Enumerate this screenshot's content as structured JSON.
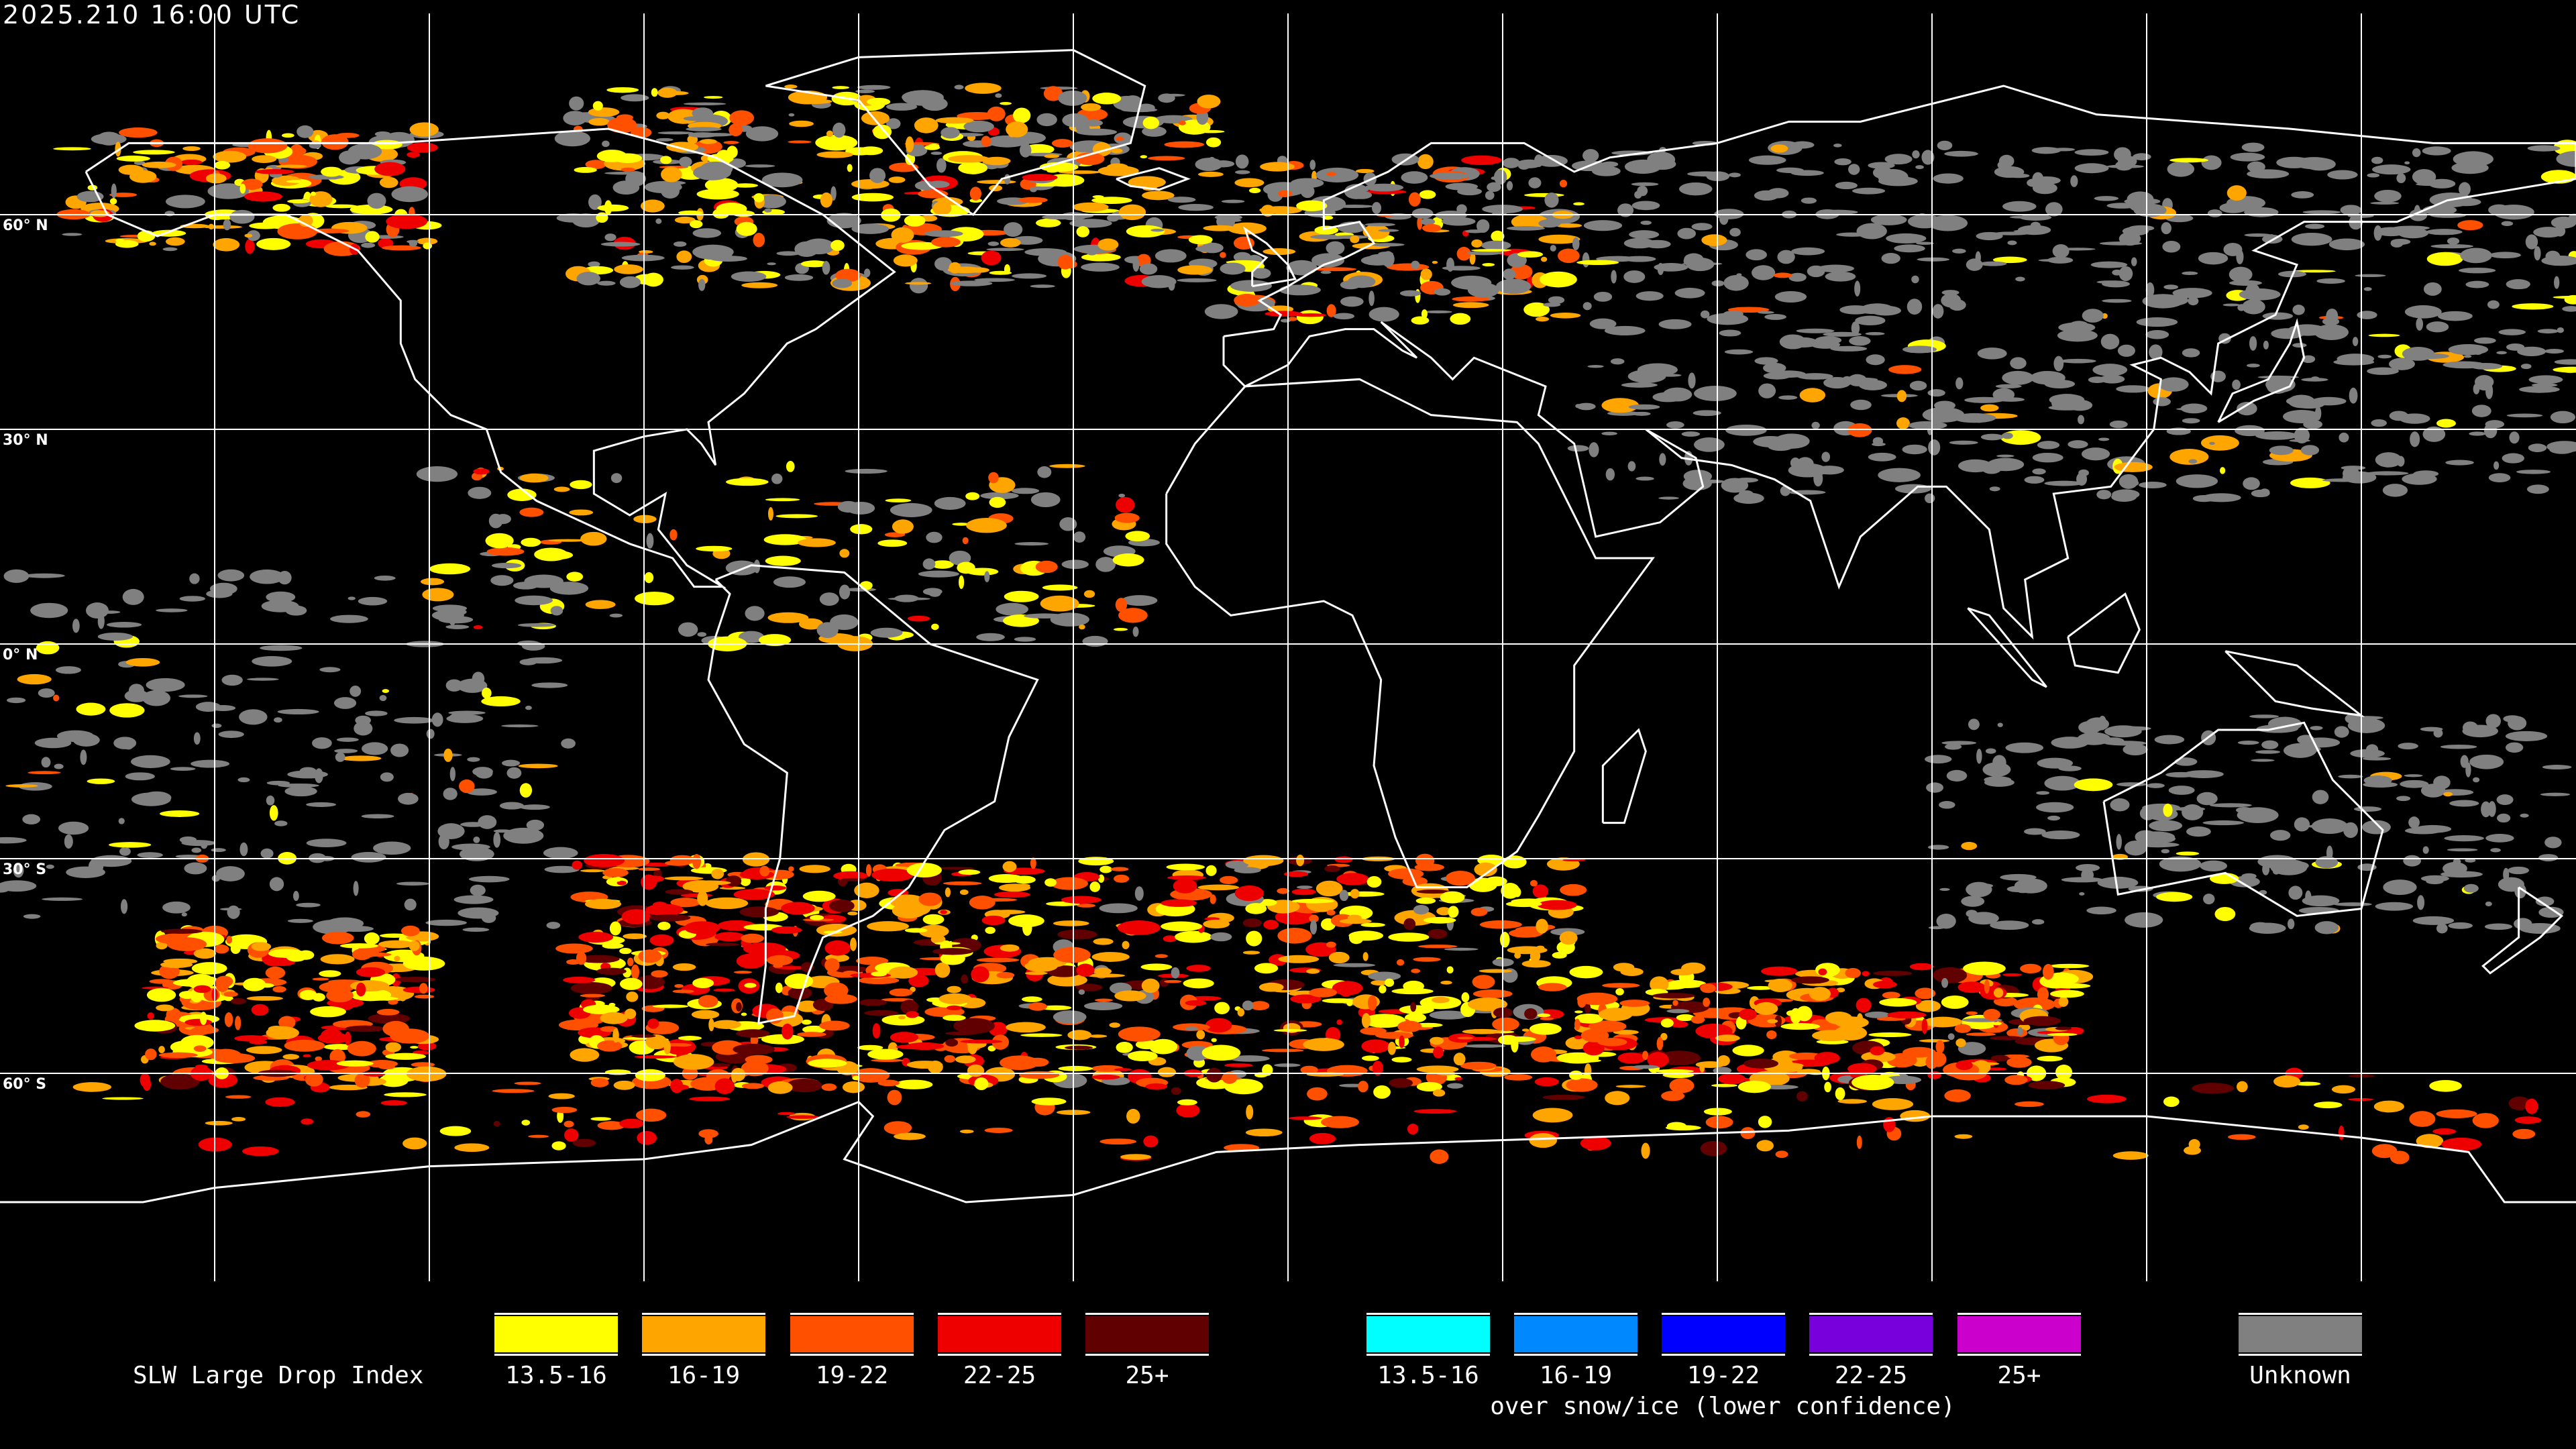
{
  "timestamp": "2025.210 16:00 UTC",
  "map": {
    "projection": "equirectangular",
    "grid_spacing_deg": 30,
    "latitude_labels": [
      "60° N",
      "30° N",
      "0° N",
      "30° S",
      "60° S"
    ],
    "background": "#000000",
    "coastline_color": "#ffffff",
    "grid_color": "#ffffff"
  },
  "legend": {
    "title": "SLW Large Drop Index",
    "primary": [
      {
        "label": "13.5-16",
        "color": "#FFFF00"
      },
      {
        "label": "16-19",
        "color": "#FFA500"
      },
      {
        "label": "19-22",
        "color": "#FF5000"
      },
      {
        "label": "22-25",
        "color": "#EE0000"
      },
      {
        "label": "25+",
        "color": "#600000"
      }
    ],
    "snow_ice": [
      {
        "label": "13.5-16",
        "color": "#00FFFF"
      },
      {
        "label": "16-19",
        "color": "#0088FF"
      },
      {
        "label": "19-22",
        "color": "#0000FF"
      },
      {
        "label": "22-25",
        "color": "#7700DD"
      },
      {
        "label": "25+",
        "color": "#CC00CC"
      }
    ],
    "snow_ice_caption": "over snow/ice (lower confidence)",
    "unknown": {
      "label": "Unknown",
      "color": "#808080"
    }
  }
}
